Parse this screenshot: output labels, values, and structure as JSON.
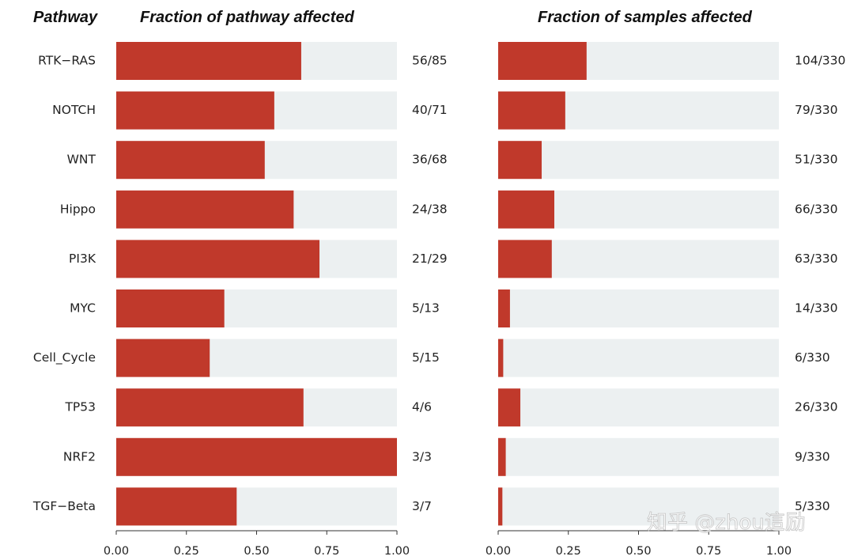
{
  "chart_data": {
    "type": "bar",
    "orientation": "horizontal",
    "row_header": "Pathway",
    "categories": [
      "RTK−RAS",
      "NOTCH",
      "WNT",
      "Hippo",
      "PI3K",
      "MYC",
      "Cell_Cycle",
      "TP53",
      "NRF2",
      "TGF−Beta"
    ],
    "panels": [
      {
        "title": "Fraction of pathway affected",
        "values": [
          0.659,
          0.563,
          0.529,
          0.632,
          0.724,
          0.385,
          0.333,
          0.667,
          1.0,
          0.429
        ],
        "labels": [
          "56/85",
          "40/71",
          "36/68",
          "24/38",
          "21/29",
          "5/13",
          "5/15",
          "4/6",
          "3/3",
          "3/7"
        ],
        "xlim": [
          0,
          1
        ],
        "xticks": [
          "0.00",
          "0.25",
          "0.50",
          "0.75",
          "1.00"
        ]
      },
      {
        "title": "Fraction of samples affected",
        "values": [
          0.315,
          0.239,
          0.155,
          0.2,
          0.191,
          0.042,
          0.018,
          0.079,
          0.027,
          0.015
        ],
        "labels": [
          "104/330",
          "79/330",
          "51/330",
          "66/330",
          "63/330",
          "14/330",
          "6/330",
          "26/330",
          "9/330",
          "5/330"
        ],
        "xlim": [
          0,
          1
        ],
        "xticks": [
          "0.00",
          "0.25",
          "0.50",
          "0.75",
          "1.00"
        ]
      }
    ],
    "colors": {
      "bar": "#c0392b",
      "background_bar": "#ecf0f1"
    },
    "grid": false,
    "legend": "none"
  },
  "watermark": "知乎 @zhou這励"
}
